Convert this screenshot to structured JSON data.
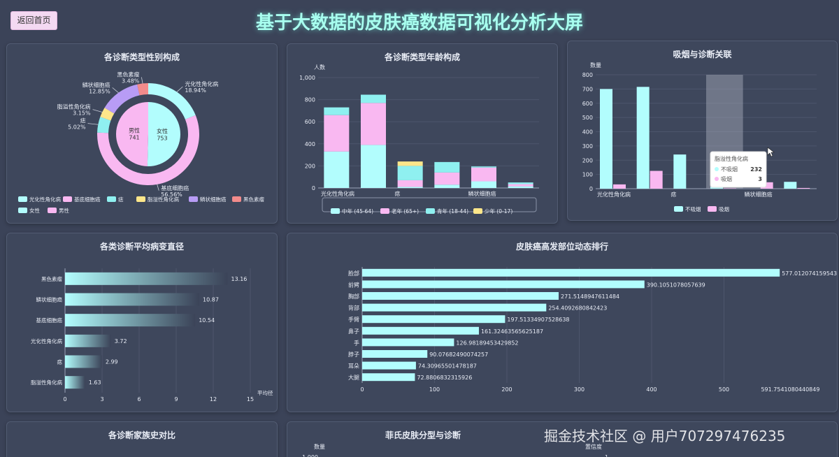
{
  "header": {
    "back_label": "返回首页",
    "title": "基于大数据的皮肤癌数据可视化分析大屏"
  },
  "panels": {
    "gender": "各诊断类型性别构成",
    "age": "各诊断类型年龄构成",
    "smoke": "吸烟与诊断关联",
    "diameter": "各类诊断平均病变直径",
    "sites": "皮肤癌高发部位动态排行",
    "family": "各诊断家族史对比",
    "fitz": "菲氏皮肤分型与诊断"
  },
  "watermark": "掘金技术社区 @ 用户707297476235",
  "chart_data": [
    {
      "id": "gender",
      "type": "pie",
      "title": "各诊断类型性别构成",
      "outer": [
        {
          "name": "光化性角化病",
          "pct": "18.94%",
          "value": 18.94,
          "color": "#b2fdfd"
        },
        {
          "name": "基底细胞癌",
          "pct": "56.56%",
          "value": 56.56,
          "color": "#f9b8f1"
        },
        {
          "name": "痣",
          "pct": "5.02%",
          "value": 5.02,
          "color": "#8ff0f0"
        },
        {
          "name": "脂溢性角化病",
          "pct": "3.15%",
          "value": 3.15,
          "color": "#fde68a"
        },
        {
          "name": "鳞状细胞癌",
          "pct": "12.85%",
          "value": 12.85,
          "color": "#b89cf5"
        },
        {
          "name": "黑色素瘤",
          "pct": "3.48%",
          "value": 3.48,
          "color": "#f28b8b"
        }
      ],
      "inner": [
        {
          "name": "女性",
          "value": 753,
          "color": "#b2fdfd"
        },
        {
          "name": "男性",
          "value": 741,
          "color": "#f9b8f1"
        }
      ],
      "legend": [
        "光化性角化病",
        "基底细胞癌",
        "痣",
        "脂溢性角化病",
        "鳞状细胞癌",
        "黑色素瘤",
        "女性",
        "男性"
      ]
    },
    {
      "id": "age",
      "type": "bar",
      "title": "各诊断类型年龄构成",
      "ylabel": "人数",
      "ylim": [
        0,
        1000
      ],
      "yticks": [
        "0",
        "200",
        "400",
        "600",
        "800",
        "1,000"
      ],
      "categories": [
        "光化性角化病",
        "基底细胞癌",
        "痣",
        "脂溢性角化病",
        "鳞状细胞癌",
        "黑色素瘤"
      ],
      "xlabels": [
        "光化性角化病",
        "痣",
        "鳞状细胞癌"
      ],
      "series": [
        {
          "name": "中年 (45-64)",
          "color": "#b2fdfd",
          "values": [
            330,
            390,
            10,
            30,
            60,
            15
          ]
        },
        {
          "name": "老年 (65+)",
          "color": "#f9b8f1",
          "values": [
            330,
            380,
            60,
            110,
            125,
            20
          ]
        },
        {
          "name": "青年 (18-44)",
          "color": "#8ff0f0",
          "values": [
            70,
            75,
            130,
            95,
            10,
            15
          ]
        },
        {
          "name": "少年 (0-17)",
          "color": "#fde68a",
          "values": [
            0,
            0,
            40,
            0,
            0,
            0
          ]
        }
      ]
    },
    {
      "id": "smoke",
      "type": "bar",
      "title": "吸烟与诊断关联",
      "ylabel": "数量",
      "ylim": [
        0,
        800
      ],
      "yticks": [
        "0",
        "100",
        "200",
        "300",
        "400",
        "500",
        "600",
        "700",
        "800"
      ],
      "categories": [
        "光化性角化病",
        "基底细胞癌",
        "痣",
        "脂溢性角化病",
        "鳞状细胞癌",
        "黑色素瘤"
      ],
      "xlabels": [
        "光化性角化病",
        "痣",
        "鳞状细胞癌"
      ],
      "series": [
        {
          "name": "不吸烟",
          "color": "#b2fdfd",
          "values": [
            700,
            715,
            240,
            232,
            0,
            48
          ]
        },
        {
          "name": "吸烟",
          "color": "#f9b8f1",
          "values": [
            30,
            125,
            0,
            3,
            45,
            5
          ]
        }
      ],
      "tooltip": {
        "title": "脂溢性角化病",
        "rows": [
          {
            "name": "不吸烟",
            "value": "232"
          },
          {
            "name": "吸烟",
            "value": "3"
          }
        ]
      }
    },
    {
      "id": "diameter",
      "type": "bar",
      "title": "各类诊断平均病变直径",
      "xlabel": "平均径",
      "xlim": [
        0,
        15
      ],
      "xticks": [
        "0",
        "3",
        "6",
        "9",
        "12",
        "15"
      ],
      "categories": [
        "黑色素瘤",
        "鳞状细胞癌",
        "基底细胞癌",
        "光化性角化病",
        "痣",
        "脂溢性角化病"
      ],
      "values": [
        13.16,
        10.87,
        10.54,
        3.72,
        2.99,
        1.63
      ],
      "value_labels": [
        "13.16",
        "10.87",
        "10.54",
        "3.72",
        "2.99",
        "1.63"
      ]
    },
    {
      "id": "sites",
      "type": "bar",
      "title": "皮肤癌高发部位动态排行",
      "xlim": [
        0,
        600
      ],
      "xticks": [
        "0",
        "100",
        "200",
        "300",
        "400",
        "500"
      ],
      "xmax_label": "591.7541080440849",
      "categories": [
        "脸部",
        "前臂",
        "胸部",
        "背部",
        "手臂",
        "鼻子",
        "手",
        "脖子",
        "耳朵",
        "大腿"
      ],
      "values": [
        577.0120741595433,
        390.1051078057639,
        271.5148947611484,
        254.4092680842423,
        197.51334907528638,
        161.32463565625187,
        126.98189453429852,
        90.07682490074257,
        74.30965501478187,
        72.8806832315926
      ],
      "value_labels": [
        "577.0120741595433",
        "390.1051078057639",
        "271.5148947611484",
        "254.4092680842423",
        "197.51334907528638",
        "161.32463565625187",
        "126.98189453429852",
        "90.07682490074257",
        "74.30965501478187",
        "72.8806832315926"
      ]
    },
    {
      "id": "fitz",
      "type": "bar",
      "title": "菲氏皮肤分型与诊断",
      "ylabel": "数量",
      "yticks": [
        "1,000"
      ],
      "y2label": "置信度",
      "y2ticks": [
        "1"
      ]
    }
  ]
}
